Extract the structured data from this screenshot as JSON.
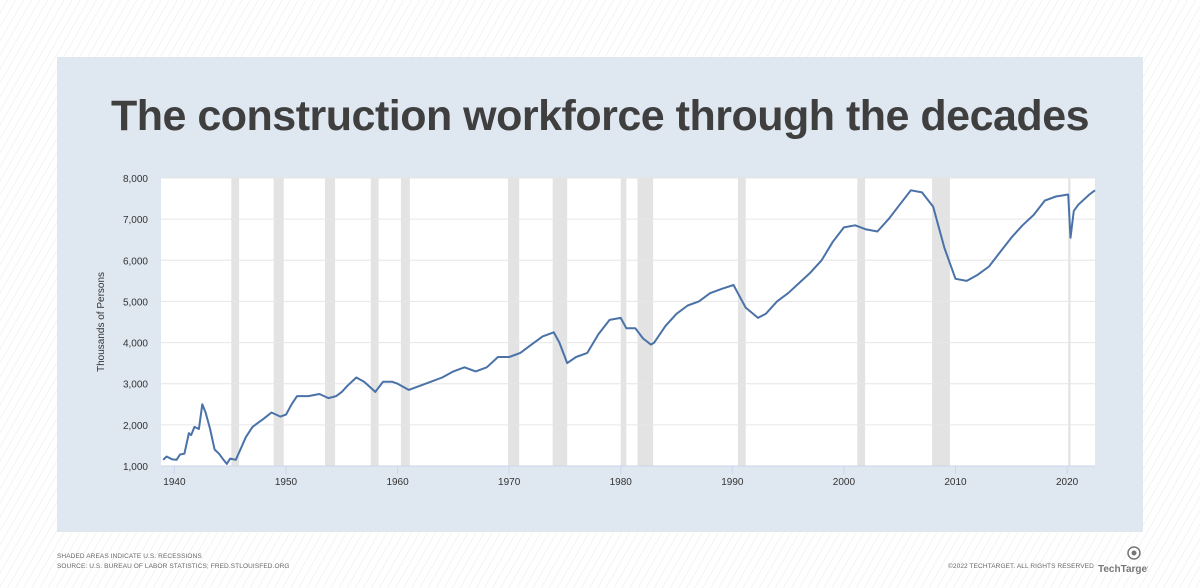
{
  "title": "The construction workforce through the decades",
  "footer": {
    "note": "SHADED AREAS INDICATE U.S. RECESSIONS",
    "source": "SOURCE: U.S. BUREAU OF LABOR STATISTICS; FRED.STLOUISFED.ORG",
    "copyright": "©2022 TECHTARGET. ALL RIGHTS RESERVED",
    "logo_text": "TechTarget"
  },
  "chart_data": {
    "type": "line",
    "title": "The construction workforce through the decades",
    "xlabel": "",
    "ylabel": "Thousands of Persons",
    "xlim": [
      1938.8,
      2022.5
    ],
    "ylim": [
      1000,
      8000
    ],
    "x_ticks": [
      1940,
      1950,
      1960,
      1970,
      1980,
      1990,
      2000,
      2010,
      2020
    ],
    "y_ticks": [
      1000,
      2000,
      3000,
      4000,
      5000,
      6000,
      7000,
      8000
    ],
    "y_tick_labels": [
      "1,000",
      "2,000",
      "3,000",
      "4,000",
      "5,000",
      "6,000",
      "7,000",
      "8,000"
    ],
    "grid": true,
    "line_color": "#4a72a8",
    "recession_color": "#e3e3e3",
    "recessions": [
      [
        1945.1,
        1945.8
      ],
      [
        1948.9,
        1949.8
      ],
      [
        1953.5,
        1954.4
      ],
      [
        1957.6,
        1958.3
      ],
      [
        1960.3,
        1961.1
      ],
      [
        1969.9,
        1970.9
      ],
      [
        1973.9,
        1975.2
      ],
      [
        1980.0,
        1980.5
      ],
      [
        1981.5,
        1982.9
      ],
      [
        1990.5,
        1991.2
      ],
      [
        2001.2,
        2001.9
      ],
      [
        2007.9,
        2009.5
      ],
      [
        2020.1,
        2020.3
      ]
    ],
    "series": [
      {
        "x": [
          1939.0,
          1939.3,
          1939.8,
          1940.2,
          1940.5,
          1940.9,
          1941.3,
          1941.5,
          1941.8,
          1942.2,
          1942.5,
          1942.8,
          1943.2,
          1943.6,
          1944.0,
          1944.4,
          1944.7,
          1945.0,
          1945.5,
          1946.0,
          1946.4,
          1947,
          1948,
          1948.7,
          1949.5,
          1950,
          1950.5,
          1951,
          1952,
          1953,
          1953.8,
          1954.5,
          1955,
          1955.5,
          1956.3,
          1957,
          1958,
          1958.7,
          1959.5,
          1960,
          1961,
          1962,
          1963,
          1964,
          1965,
          1966,
          1967,
          1968,
          1969,
          1970,
          1971,
          1972,
          1973,
          1974,
          1974.5,
          1975.2,
          1976,
          1977,
          1978,
          1979,
          1980,
          1980.5,
          1981.3,
          1982,
          1982.7,
          1983,
          1984,
          1985,
          1986,
          1987,
          1988,
          1989,
          1990.1,
          1990.5,
          1991.2,
          1992.3,
          1993,
          1994,
          1995,
          1996,
          1997,
          1998,
          1999,
          2000,
          2001,
          2002,
          2003,
          2004,
          2005,
          2006,
          2007,
          2008,
          2009,
          2010,
          2011,
          2012,
          2013,
          2014,
          2015,
          2016,
          2017,
          2018,
          2019,
          2020.1,
          2020.3,
          2020.6,
          2021,
          2022,
          2022.5
        ],
        "values": [
          1150,
          1230,
          1160,
          1150,
          1280,
          1300,
          1800,
          1750,
          1950,
          1900,
          2500,
          2300,
          1900,
          1400,
          1300,
          1150,
          1050,
          1180,
          1150,
          1450,
          1700,
          1950,
          2150,
          2300,
          2200,
          2250,
          2500,
          2700,
          2700,
          2750,
          2650,
          2700,
          2800,
          2950,
          3150,
          3050,
          2800,
          3050,
          3050,
          3000,
          2850,
          2950,
          3050,
          3150,
          3300,
          3400,
          3300,
          3400,
          3650,
          3650,
          3750,
          3950,
          4150,
          4250,
          4000,
          3500,
          3650,
          3750,
          4200,
          4550,
          4600,
          4350,
          4350,
          4100,
          3950,
          4000,
          4400,
          4700,
          4900,
          5000,
          5200,
          5300,
          5400,
          5200,
          4850,
          4600,
          4700,
          5000,
          5200,
          5450,
          5700,
          6000,
          6450,
          6800,
          6850,
          6750,
          6700,
          7000,
          7350,
          7700,
          7650,
          7300,
          6300,
          5550,
          5500,
          5650,
          5850,
          6200,
          6550,
          6850,
          7100,
          7450,
          7550,
          7600,
          6550,
          7200,
          7350,
          7600,
          7700
        ]
      }
    ]
  }
}
